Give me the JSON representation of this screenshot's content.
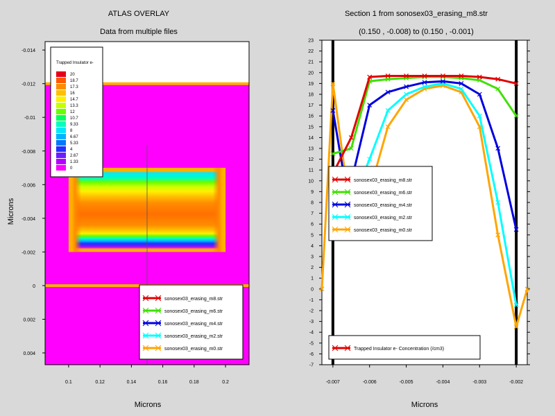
{
  "left_panel": {
    "title": "ATLAS OVERLAY",
    "subtitle": "Data from multiple files",
    "xlabel": "Microns",
    "ylabel": "Microns",
    "x_ticks": [
      "0.1",
      "0.12",
      "0.14",
      "0.16",
      "0.18",
      "0.2"
    ],
    "y_ticks": [
      "-0.014",
      "-0.012",
      "-0.01",
      "-0.008",
      "-0.006",
      "-0.004",
      "-0.002",
      "0",
      "0.002",
      "0.004"
    ],
    "colorbar": {
      "title": "Trapped Insulator e-",
      "levels": [
        "20",
        "18.7",
        "17.3",
        "16",
        "14.7",
        "13.3",
        "12",
        "10.7",
        "9.33",
        "8",
        "6.67",
        "5.33",
        "4",
        "2.67",
        "1.33",
        "0"
      ],
      "colors": [
        "#e8001a",
        "#ff5a00",
        "#ff8c00",
        "#ffc000",
        "#fff000",
        "#c8ff00",
        "#66ff00",
        "#00ff60",
        "#00ffc0",
        "#00e8ff",
        "#00b4ff",
        "#0078ff",
        "#1e32ff",
        "#6a1eff",
        "#b400ff",
        "#ff00ff"
      ]
    },
    "legend": [
      {
        "name": "sonosex03_erasing_m8.str",
        "color": "#e00000"
      },
      {
        "name": "sonosex03_erasing_m6.str",
        "color": "#40e000"
      },
      {
        "name": "sonosex03_erasing_m4.str",
        "color": "#0000e0"
      },
      {
        "name": "sonosex03_erasing_m2.str",
        "color": "#00ffff"
      },
      {
        "name": "sonosex03_erasing_m0.str",
        "color": "#ffa500"
      }
    ]
  },
  "right_panel": {
    "title": "Section 1 from sonosex03_erasing_m8.str",
    "subtitle": "(0.150 , -0.008) to (0.150 , -0.001)",
    "xlabel": "Microns",
    "legend_bottom": "Trapped Insulator e- Concentration (/cm3)"
  },
  "chart_data": [
    {
      "type": "heatmap",
      "title": "ATLAS OVERLAY",
      "subtitle": "Data from multiple files",
      "xlabel": "Microns",
      "ylabel": "Microns",
      "xlim": [
        0.085,
        0.215
      ],
      "ylim": [
        -0.0145,
        0.0047
      ],
      "y_inverted": true,
      "colorbar_title": "Trapped Insulator e-",
      "colorbar_levels": [
        20,
        18.7,
        17.3,
        16,
        14.7,
        13.3,
        12,
        10.7,
        9.33,
        8,
        6.67,
        5.33,
        4,
        2.67,
        1.33,
        0
      ],
      "regions": {
        "background_value": 0,
        "trap_box": {
          "x": [
            0.1,
            0.2
          ],
          "y": [
            -0.007,
            -0.002
          ]
        }
      },
      "cutline_x": 0.15,
      "boundaries_y": [
        -0.012,
        0
      ]
    },
    {
      "type": "line",
      "title": "Section 1 from sonosex03_erasing_m8.str",
      "subtitle": "(0.150 , -0.008) to (0.150 , -0.001)",
      "xlabel": "Microns",
      "ylabel": "",
      "xlim": [
        -0.0073,
        -0.0017
      ],
      "ylim": [
        -7,
        23
      ],
      "x_ticks": [
        -0.007,
        -0.006,
        -0.005,
        -0.004,
        -0.003,
        -0.002
      ],
      "y_ticks": [
        -7,
        -6,
        -5,
        -4,
        -3,
        -2,
        -1,
        0,
        1,
        2,
        3,
        4,
        5,
        6,
        7,
        8,
        9,
        10,
        11,
        12,
        13,
        14,
        15,
        16,
        17,
        18,
        19,
        20,
        21,
        22,
        23
      ],
      "vlines": [
        -0.007,
        -0.002
      ],
      "series": [
        {
          "name": "sonosex03_erasing_m8.str",
          "color": "#e00000",
          "x": [
            -0.00695,
            -0.0065,
            -0.006,
            -0.0055,
            -0.005,
            -0.0045,
            -0.004,
            -0.0035,
            -0.003,
            -0.0025,
            -0.002
          ],
          "y": [
            11.0,
            14.0,
            19.6,
            19.7,
            19.7,
            19.7,
            19.7,
            19.7,
            19.6,
            19.4,
            19.0
          ]
        },
        {
          "name": "sonosex03_erasing_m6.str",
          "color": "#40e000",
          "x": [
            -0.007,
            -0.0065,
            -0.006,
            -0.0055,
            -0.005,
            -0.0045,
            -0.004,
            -0.0035,
            -0.003,
            -0.0025,
            -0.002
          ],
          "y": [
            12.5,
            13.0,
            19.2,
            19.4,
            19.5,
            19.6,
            19.6,
            19.5,
            19.3,
            18.5,
            16.0
          ]
        },
        {
          "name": "sonosex03_erasing_m4.str",
          "color": "#0000e0",
          "x": [
            -0.007,
            -0.0066,
            -0.006,
            -0.0055,
            -0.005,
            -0.0045,
            -0.004,
            -0.0035,
            -0.003,
            -0.0025,
            -0.002
          ],
          "y": [
            16.5,
            8.5,
            17.0,
            18.2,
            18.7,
            19.1,
            19.2,
            19.0,
            18.0,
            13.0,
            5.5
          ]
        },
        {
          "name": "sonosex03_erasing_m2.str",
          "color": "#00ffff",
          "x": [
            -0.007,
            -0.0066,
            -0.006,
            -0.0055,
            -0.005,
            -0.0045,
            -0.004,
            -0.0035,
            -0.003,
            -0.0025,
            -0.002
          ],
          "y": [
            9.0,
            7.0,
            12.0,
            16.5,
            18.0,
            18.7,
            19.0,
            18.5,
            16.0,
            8.0,
            -1.5
          ]
        },
        {
          "name": "sonosex03_erasing_m0.str",
          "color": "#ffa500",
          "x": [
            -0.0073,
            -0.007,
            -0.0065,
            -0.006,
            -0.0055,
            -0.005,
            -0.0045,
            -0.004,
            -0.0035,
            -0.003,
            -0.0025,
            -0.002,
            -0.0017
          ],
          "y": [
            0,
            19.0,
            6.5,
            9.0,
            15.0,
            17.5,
            18.5,
            18.8,
            18.2,
            15.0,
            5.0,
            -3.5,
            0
          ]
        }
      ]
    }
  ]
}
